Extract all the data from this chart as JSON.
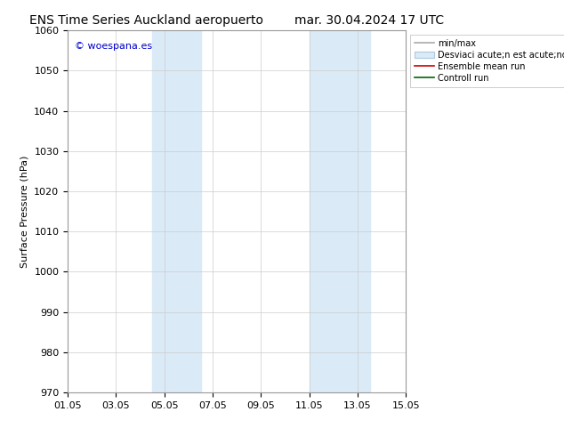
{
  "title_left": "ENS Time Series Auckland aeropuerto",
  "title_right": "mar. 30.04.2024 17 UTC",
  "ylabel": "Surface Pressure (hPa)",
  "xlabel": "",
  "watermark": "© woespana.es",
  "watermark_color": "#0000cc",
  "xlim": [
    0,
    14
  ],
  "ylim": [
    970,
    1060
  ],
  "yticks": [
    970,
    980,
    990,
    1000,
    1010,
    1020,
    1030,
    1040,
    1050,
    1060
  ],
  "xtick_labels": [
    "01.05",
    "03.05",
    "05.05",
    "07.05",
    "09.05",
    "11.05",
    "13.05",
    "15.05"
  ],
  "xtick_positions": [
    0,
    2,
    4,
    6,
    8,
    10,
    12,
    14
  ],
  "shaded_bands": [
    {
      "xmin": 3.5,
      "xmax": 5.5,
      "color": "#daeaf7"
    },
    {
      "xmin": 10.0,
      "xmax": 12.5,
      "color": "#daeaf7"
    }
  ],
  "bg_color": "#ffffff",
  "plot_bg_color": "#ffffff",
  "grid_color": "#cccccc",
  "legend_line1": "min/max",
  "legend_line2": "Desviaci acute;n est acute;ndar",
  "legend_line3": "Ensemble mean run",
  "legend_line4": "Controll run",
  "title_fontsize": 10,
  "axis_fontsize": 8,
  "tick_fontsize": 8,
  "legend_fontsize": 7
}
